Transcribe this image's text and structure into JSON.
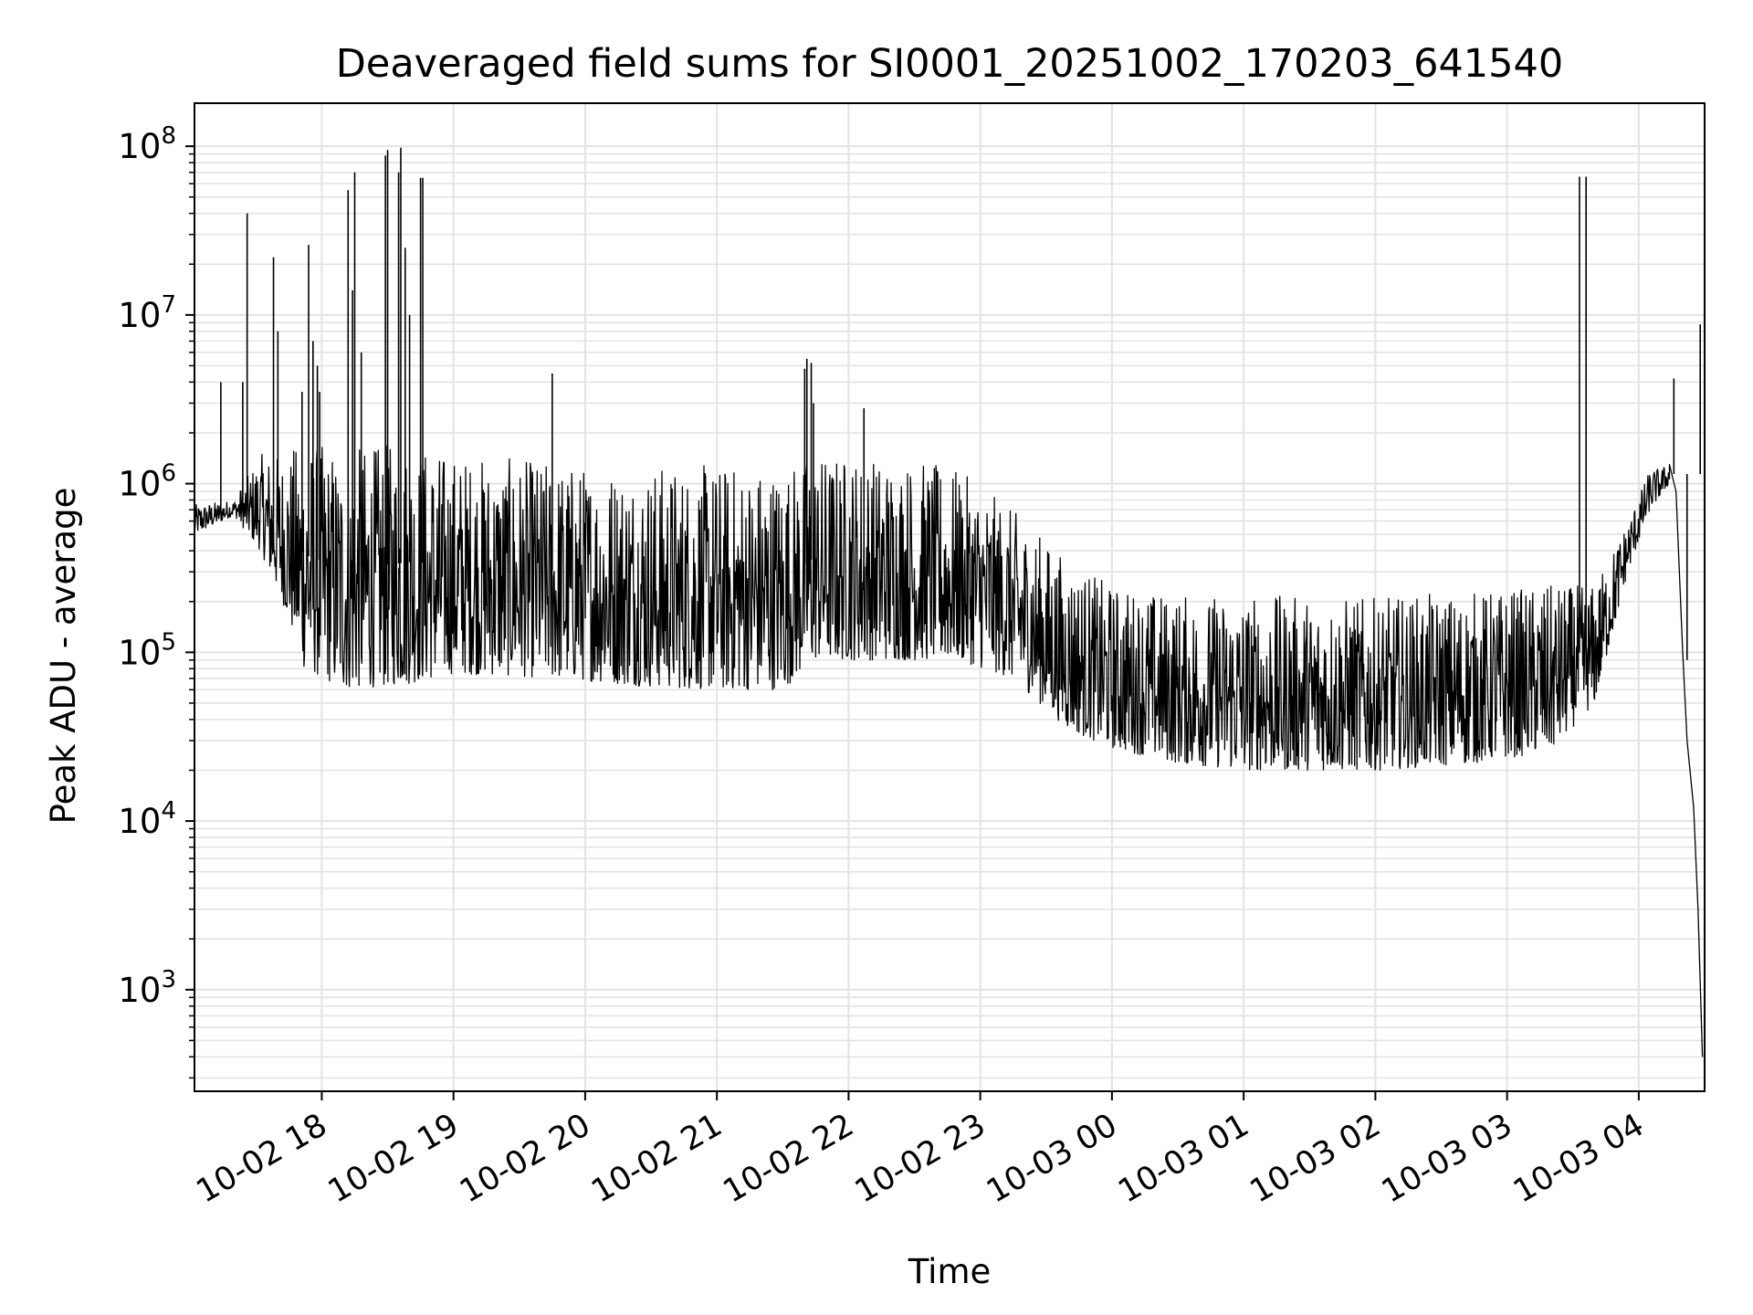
{
  "chart_data": {
    "type": "line",
    "title": "Deaveraged field sums for SI0001_20251002_170203_641540",
    "xlabel": "Time",
    "ylabel": "Peak ADU - average",
    "yscale": "log",
    "ylim": [
      250,
      180000000
    ],
    "xlim": [
      "2025-10-02 17:02",
      "2025-10-03 04:30"
    ],
    "grid": true,
    "line_color": "#000000",
    "x_ticks": [
      {
        "t": "2025-10-02 18:00",
        "label": "10-02 18"
      },
      {
        "t": "2025-10-02 19:00",
        "label": "10-02 19"
      },
      {
        "t": "2025-10-02 20:00",
        "label": "10-02 20"
      },
      {
        "t": "2025-10-02 21:00",
        "label": "10-02 21"
      },
      {
        "t": "2025-10-02 22:00",
        "label": "10-02 22"
      },
      {
        "t": "2025-10-02 23:00",
        "label": "10-02 23"
      },
      {
        "t": "2025-10-03 00:00",
        "label": "10-03 00"
      },
      {
        "t": "2025-10-03 01:00",
        "label": "10-03 01"
      },
      {
        "t": "2025-10-03 02:00",
        "label": "10-03 02"
      },
      {
        "t": "2025-10-03 03:00",
        "label": "10-03 03"
      },
      {
        "t": "2025-10-03 04:00",
        "label": "10-03 04"
      }
    ],
    "y_ticks": [
      {
        "value": 1000,
        "base": "10",
        "exp": "3"
      },
      {
        "value": 10000,
        "base": "10",
        "exp": "4"
      },
      {
        "value": 100000,
        "base": "10",
        "exp": "5"
      },
      {
        "value": 1000000,
        "base": "10",
        "exp": "6"
      },
      {
        "value": 10000000,
        "base": "10",
        "exp": "7"
      },
      {
        "value": 100000000,
        "base": "10",
        "exp": "8"
      }
    ],
    "series": [
      {
        "band": [
          {
            "t": "2025-10-02 17:02",
            "low": 500000,
            "high": 750000
          },
          {
            "t": "2025-10-02 17:20",
            "low": 650000,
            "high": 800000
          },
          {
            "t": "2025-10-02 17:32",
            "low": 400000,
            "high": 1500000
          },
          {
            "t": "2025-10-02 17:42",
            "low": 200000,
            "high": 1500000
          },
          {
            "t": "2025-10-02 17:52",
            "low": 80000,
            "high": 1800000
          },
          {
            "t": "2025-10-02 18:10",
            "low": 60000,
            "high": 1600000
          },
          {
            "t": "2025-10-02 18:40",
            "low": 65000,
            "high": 1800000
          },
          {
            "t": "2025-10-02 19:00",
            "low": 75000,
            "high": 1500000
          },
          {
            "t": "2025-10-02 19:30",
            "low": 72000,
            "high": 1400000
          },
          {
            "t": "2025-10-02 20:00",
            "low": 68000,
            "high": 1300000
          },
          {
            "t": "2025-10-02 20:30",
            "low": 62000,
            "high": 1300000
          },
          {
            "t": "2025-10-02 21:00",
            "low": 60000,
            "high": 1300000
          },
          {
            "t": "2025-10-02 21:30",
            "low": 60000,
            "high": 1300000
          },
          {
            "t": "2025-10-02 21:45",
            "low": 90000,
            "high": 1500000
          },
          {
            "t": "2025-10-02 22:00",
            "low": 90000,
            "high": 1500000
          },
          {
            "t": "2025-10-02 22:30",
            "low": 90000,
            "high": 1400000
          },
          {
            "t": "2025-10-02 22:50",
            "low": 90000,
            "high": 1200000
          },
          {
            "t": "2025-10-02 23:15",
            "low": 70000,
            "high": 700000
          },
          {
            "t": "2025-10-02 23:40",
            "low": 35000,
            "high": 350000
          },
          {
            "t": "2025-10-03 00:00",
            "low": 27000,
            "high": 250000
          },
          {
            "t": "2025-10-03 00:30",
            "low": 22000,
            "high": 220000
          },
          {
            "t": "2025-10-03 01:00",
            "low": 20000,
            "high": 220000
          },
          {
            "t": "2025-10-03 02:00",
            "low": 20000,
            "high": 210000
          },
          {
            "t": "2025-10-03 02:45",
            "low": 22000,
            "high": 230000
          },
          {
            "t": "2025-10-03 03:20",
            "low": 26000,
            "high": 250000
          },
          {
            "t": "2025-10-03 03:40",
            "low": 50000,
            "high": 250000
          },
          {
            "t": "2025-10-03 03:55",
            "low": 300000,
            "high": 600000
          },
          {
            "t": "2025-10-03 04:05",
            "low": 700000,
            "high": 1200000
          },
          {
            "t": "2025-10-03 04:14",
            "low": 1000000,
            "high": 1300000
          }
        ],
        "spikes": [
          {
            "t": "2025-10-02 17:14",
            "value": 4000000
          },
          {
            "t": "2025-10-02 17:24",
            "value": 4000000
          },
          {
            "t": "2025-10-02 17:26",
            "value": 40000000
          },
          {
            "t": "2025-10-02 17:38",
            "value": 22000000
          },
          {
            "t": "2025-10-02 17:40",
            "value": 8000000
          },
          {
            "t": "2025-10-02 17:56",
            "value": 7000000
          },
          {
            "t": "2025-10-02 17:58",
            "value": 5000000
          },
          {
            "t": "2025-10-02 17:59",
            "value": 3500000
          },
          {
            "t": "2025-10-02 17:51",
            "value": 3500000
          },
          {
            "t": "2025-10-02 17:54",
            "value": 26000000
          },
          {
            "t": "2025-10-02 18:12",
            "value": 55000000
          },
          {
            "t": "2025-10-02 18:14",
            "value": 14000000
          },
          {
            "t": "2025-10-02 18:15",
            "value": 70000000
          },
          {
            "t": "2025-10-02 18:18",
            "value": 6000000
          },
          {
            "t": "2025-10-02 18:29",
            "value": 88000000
          },
          {
            "t": "2025-10-02 18:30",
            "value": 95000000
          },
          {
            "t": "2025-10-02 18:35",
            "value": 70000000
          },
          {
            "t": "2025-10-02 18:36",
            "value": 98000000
          },
          {
            "t": "2025-10-02 18:38",
            "value": 25000000
          },
          {
            "t": "2025-10-02 18:40",
            "value": 10000000
          },
          {
            "t": "2025-10-02 18:45",
            "value": 65000000
          },
          {
            "t": "2025-10-02 18:46",
            "value": 65000000
          },
          {
            "t": "2025-10-02 19:45",
            "value": 4500000
          },
          {
            "t": "2025-10-02 21:40",
            "value": 4800000
          },
          {
            "t": "2025-10-02 21:41",
            "value": 5500000
          },
          {
            "t": "2025-10-02 21:43",
            "value": 5200000
          },
          {
            "t": "2025-10-02 21:44",
            "value": 3000000
          },
          {
            "t": "2025-10-02 22:07",
            "value": 2800000
          },
          {
            "t": "2025-10-03 03:33",
            "value": 66000000
          },
          {
            "t": "2025-10-03 03:36",
            "value": 66000000
          },
          {
            "t": "2025-10-03 04:16",
            "value": 4200000
          },
          {
            "t": "2025-10-03 04:28",
            "value": 8800000
          },
          {
            "t": "2025-10-03 04:22",
            "value": 90000
          }
        ],
        "tail": [
          {
            "t": "2025-10-03 04:14",
            "value": 1300000
          },
          {
            "t": "2025-10-03 04:17",
            "value": 900000
          },
          {
            "t": "2025-10-03 04:20",
            "value": 100000
          },
          {
            "t": "2025-10-03 04:22",
            "value": 30000
          },
          {
            "t": "2025-10-03 04:25",
            "value": 12000
          },
          {
            "t": "2025-10-03 04:27",
            "value": 3000
          },
          {
            "t": "2025-10-03 04:29",
            "value": 400
          }
        ]
      }
    ]
  }
}
